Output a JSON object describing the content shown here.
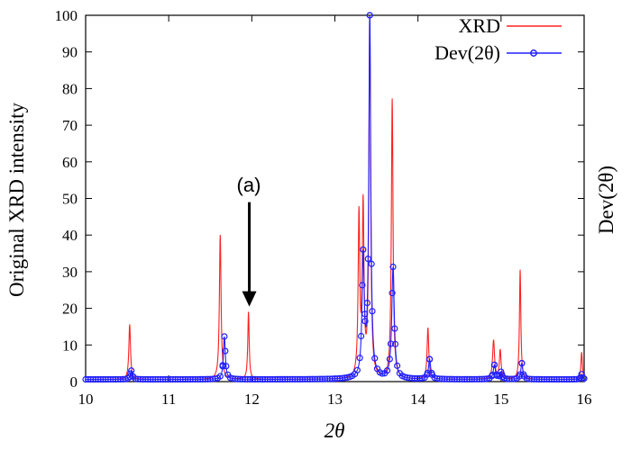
{
  "chart_data": {
    "type": "line",
    "xlabel": "2θ",
    "ylabel": "Original XRD intensity",
    "y2label": "Dev(2θ)",
    "xlim": [
      10,
      16
    ],
    "ylim": [
      0,
      100
    ],
    "x_ticks": [
      10,
      11,
      12,
      13,
      14,
      15,
      16
    ],
    "x_tick_labels": [
      "10",
      "11",
      "12",
      "13",
      "14",
      "15",
      "16"
    ],
    "y_ticks": [
      0,
      10,
      20,
      30,
      40,
      50,
      60,
      70,
      80,
      90,
      100
    ],
    "y_tick_labels": [
      "0",
      "10",
      "20",
      "30",
      "40",
      "50",
      "60",
      "70",
      "80",
      "90",
      "100"
    ],
    "grid": false,
    "legend_position": "top-right",
    "annotation": {
      "text": "(a)",
      "x": 11.97,
      "y_from": 49,
      "y_to": 20.5
    },
    "series": [
      {
        "name": "XRD",
        "color": "#ff2020",
        "marker": "none",
        "baseline": 0.6,
        "peaks": [
          {
            "x": 10.53,
            "y": 15.6,
            "w": 0.012
          },
          {
            "x": 11.62,
            "y": 40.0,
            "w": 0.012
          },
          {
            "x": 11.96,
            "y": 19.0,
            "w": 0.01
          },
          {
            "x": 13.29,
            "y": 44.5,
            "w": 0.012
          },
          {
            "x": 13.34,
            "y": 46.5,
            "w": 0.012
          },
          {
            "x": 13.42,
            "y": 100.0,
            "w": 0.012
          },
          {
            "x": 13.69,
            "y": 77.0,
            "w": 0.012
          },
          {
            "x": 14.12,
            "y": 14.6,
            "w": 0.012
          },
          {
            "x": 14.91,
            "y": 11.2,
            "w": 0.014
          },
          {
            "x": 14.99,
            "y": 8.5,
            "w": 0.012
          },
          {
            "x": 15.23,
            "y": 30.5,
            "w": 0.01
          },
          {
            "x": 15.97,
            "y": 8.0,
            "w": 0.01
          }
        ]
      },
      {
        "name": "Dev(2θ)",
        "color": "#2020ff",
        "marker": "circle",
        "baseline": 0.6,
        "marker_spacing": 0.03,
        "peaks": [
          {
            "x": 10.55,
            "y": 3.0,
            "w": 0.014
          },
          {
            "x": 11.67,
            "y": 12.3,
            "w": 0.014
          },
          {
            "x": 13.34,
            "y": 33.0,
            "w": 0.016
          },
          {
            "x": 13.42,
            "y": 100.0,
            "w": 0.014
          },
          {
            "x": 13.7,
            "y": 31.0,
            "w": 0.018
          },
          {
            "x": 14.14,
            "y": 6.0,
            "w": 0.016
          },
          {
            "x": 14.92,
            "y": 4.5,
            "w": 0.016
          },
          {
            "x": 15.0,
            "y": 2.5,
            "w": 0.014
          },
          {
            "x": 15.25,
            "y": 5.0,
            "w": 0.014
          },
          {
            "x": 15.97,
            "y": 2.0,
            "w": 0.012
          }
        ]
      }
    ]
  }
}
